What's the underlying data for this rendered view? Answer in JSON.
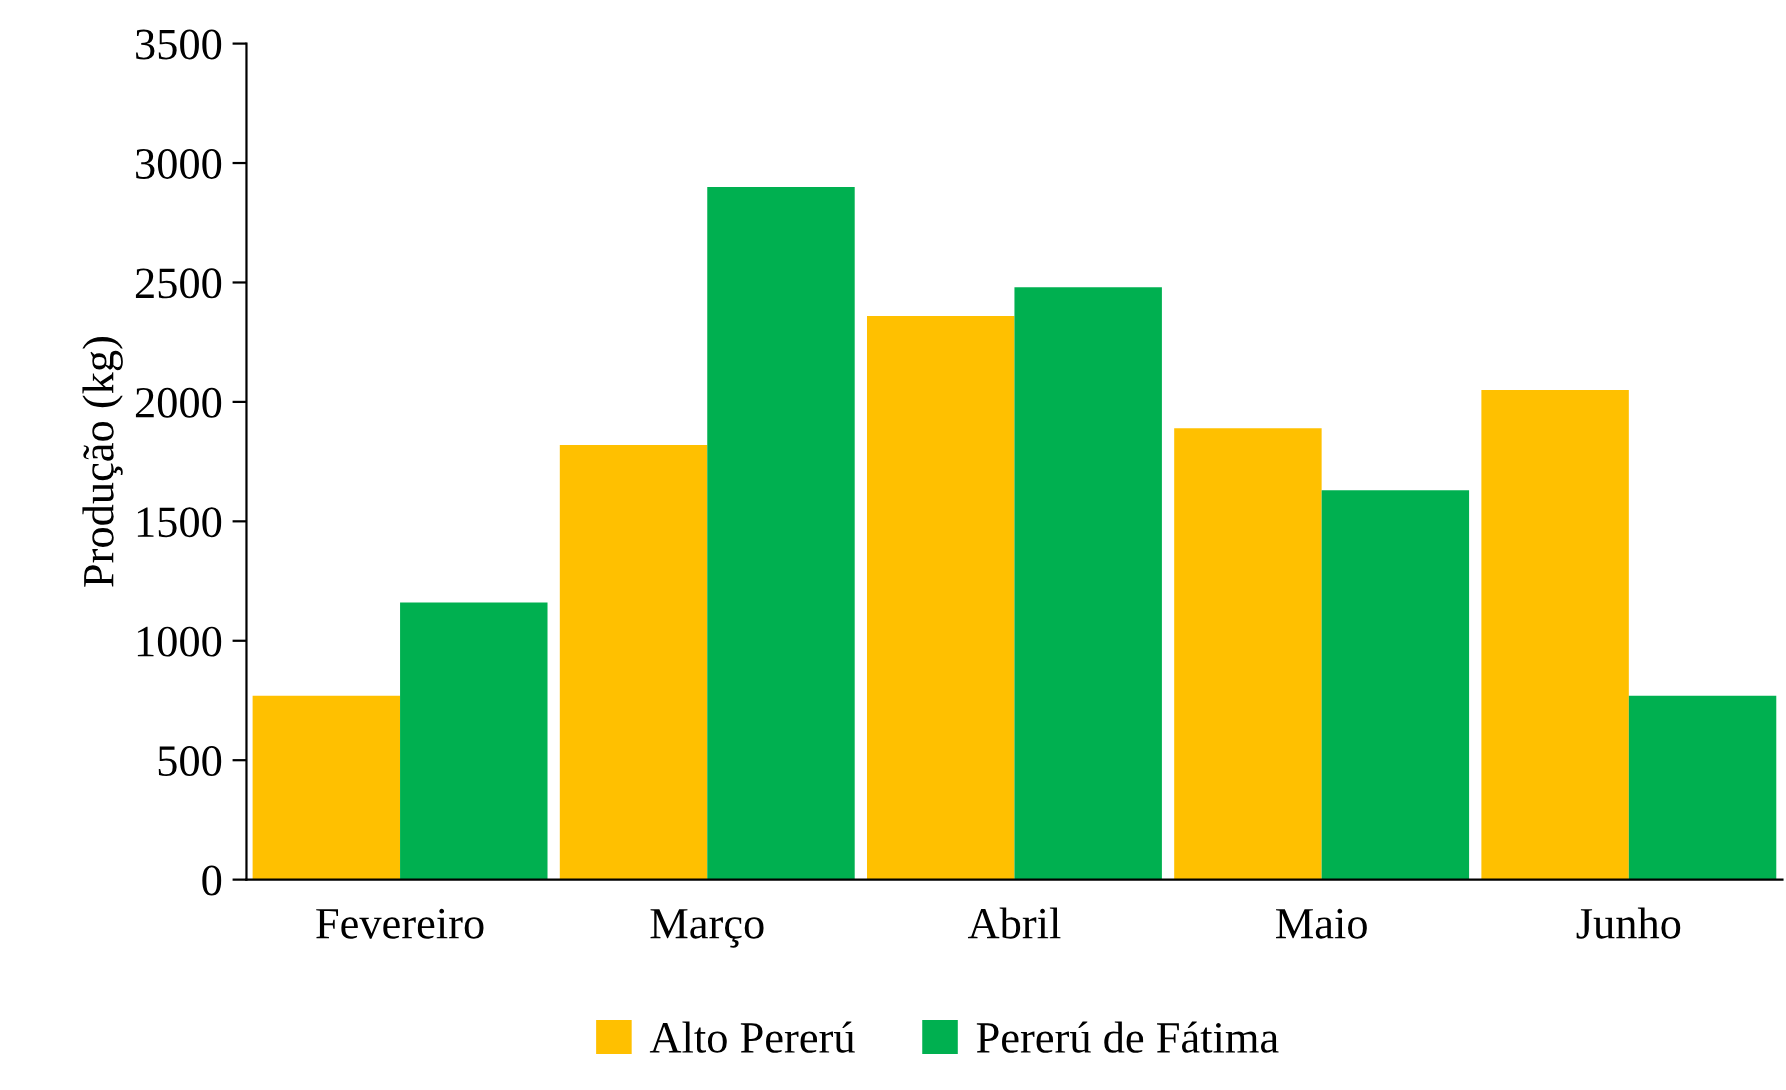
{
  "chart_data": {
    "type": "bar",
    "ylabel": "Produção (kg)",
    "categories": [
      "Fevereiro",
      "Março",
      "Abril",
      "Maio",
      "Junho"
    ],
    "series": [
      {
        "name": "Alto Pererú",
        "color": "#ffc000",
        "values": [
          770,
          1820,
          2360,
          1890,
          2050
        ]
      },
      {
        "name": "Pererú de Fátima",
        "color": "#00b050",
        "values": [
          1160,
          2900,
          2480,
          1630,
          770
        ]
      }
    ],
    "ylim": [
      0,
      3500
    ],
    "yticks": [
      0,
      500,
      1000,
      1500,
      2000,
      2500,
      3000,
      3500
    ],
    "grid": false,
    "legend": "bottom"
  }
}
